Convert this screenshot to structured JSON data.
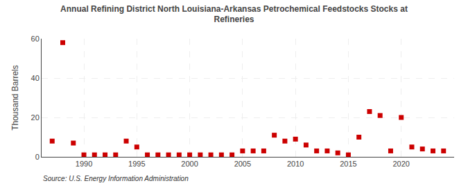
{
  "chart_data": {
    "type": "scatter",
    "title": "Annual Refining District North Louisiana-Arkansas Petrochemical Feedstocks Stocks at\nRefineries",
    "ylabel": "Thousand Barrels",
    "source": "Source: U.S. Energy Information Administration",
    "x": [
      1987,
      1988,
      1989,
      1990,
      1991,
      1992,
      1993,
      1994,
      1995,
      1996,
      1997,
      1998,
      1999,
      2000,
      2001,
      2002,
      2003,
      2004,
      2005,
      2006,
      2007,
      2008,
      2009,
      2010,
      2011,
      2012,
      2013,
      2014,
      2015,
      2016,
      2017,
      2018,
      2019,
      2020,
      2021,
      2022,
      2023,
      2024
    ],
    "values": [
      8,
      58,
      7,
      1,
      1,
      1,
      1,
      8,
      5,
      1,
      1,
      1,
      1,
      1,
      1,
      1,
      1,
      1,
      3,
      3,
      3,
      11,
      8,
      9,
      6,
      3,
      3,
      2,
      1,
      10,
      23,
      21,
      3,
      20,
      5,
      4,
      3,
      3
    ],
    "color": "#cc0000",
    "marker": "square",
    "xlim": [
      1986,
      2025
    ],
    "ylim": [
      0,
      60
    ],
    "xticks": [
      1990,
      1995,
      2000,
      2005,
      2010,
      2015,
      2020
    ],
    "yticks": [
      0,
      20,
      40,
      60
    ],
    "grid": true
  }
}
